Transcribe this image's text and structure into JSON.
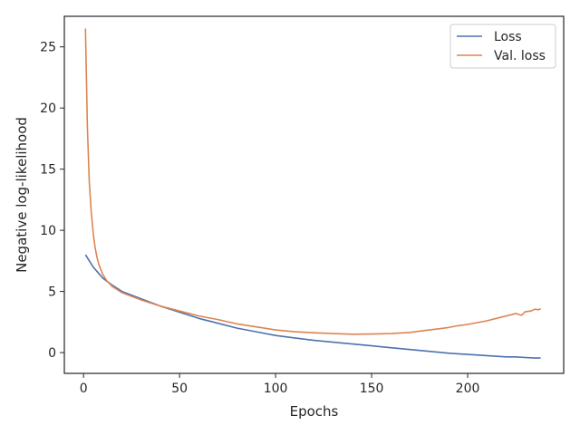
{
  "chart_data": {
    "type": "line",
    "title": "",
    "xlabel": "Epochs",
    "ylabel": "Negative log-likelihood",
    "xlim": [
      -10,
      250
    ],
    "ylim": [
      -1.7,
      27.5
    ],
    "x_ticks": [
      0,
      50,
      100,
      150,
      200
    ],
    "y_ticks": [
      0,
      5,
      10,
      15,
      20,
      25
    ],
    "grid": false,
    "legend_position": "top-right",
    "series": [
      {
        "name": "Loss",
        "color": "#4c72b0",
        "x": [
          1,
          5,
          10,
          15,
          20,
          30,
          40,
          50,
          60,
          70,
          80,
          90,
          100,
          110,
          120,
          130,
          140,
          150,
          160,
          170,
          180,
          190,
          200,
          210,
          220,
          225,
          230,
          235,
          238
        ],
        "y": [
          8.0,
          7.0,
          6.1,
          5.5,
          5.0,
          4.4,
          3.8,
          3.3,
          2.8,
          2.4,
          2.0,
          1.7,
          1.4,
          1.2,
          1.0,
          0.85,
          0.7,
          0.55,
          0.4,
          0.25,
          0.1,
          -0.05,
          -0.15,
          -0.25,
          -0.35,
          -0.35,
          -0.4,
          -0.45,
          -0.45
        ]
      },
      {
        "name": "Val. loss",
        "color": "#dd8452",
        "x": [
          1,
          2,
          3,
          4,
          5,
          6,
          7,
          8,
          10,
          12,
          15,
          20,
          25,
          30,
          40,
          50,
          60,
          70,
          80,
          90,
          100,
          110,
          120,
          130,
          140,
          150,
          160,
          170,
          175,
          180,
          185,
          190,
          195,
          200,
          205,
          210,
          215,
          220,
          223,
          225,
          228,
          230,
          233,
          235,
          237,
          238
        ],
        "y": [
          26.5,
          18.5,
          14.0,
          11.5,
          9.8,
          8.6,
          7.8,
          7.2,
          6.4,
          5.9,
          5.4,
          4.9,
          4.6,
          4.3,
          3.8,
          3.4,
          3.0,
          2.7,
          2.35,
          2.1,
          1.85,
          1.7,
          1.62,
          1.55,
          1.5,
          1.52,
          1.55,
          1.65,
          1.75,
          1.85,
          1.95,
          2.05,
          2.2,
          2.3,
          2.45,
          2.6,
          2.8,
          3.0,
          3.1,
          3.2,
          3.05,
          3.35,
          3.4,
          3.55,
          3.5,
          3.6
        ]
      }
    ]
  }
}
